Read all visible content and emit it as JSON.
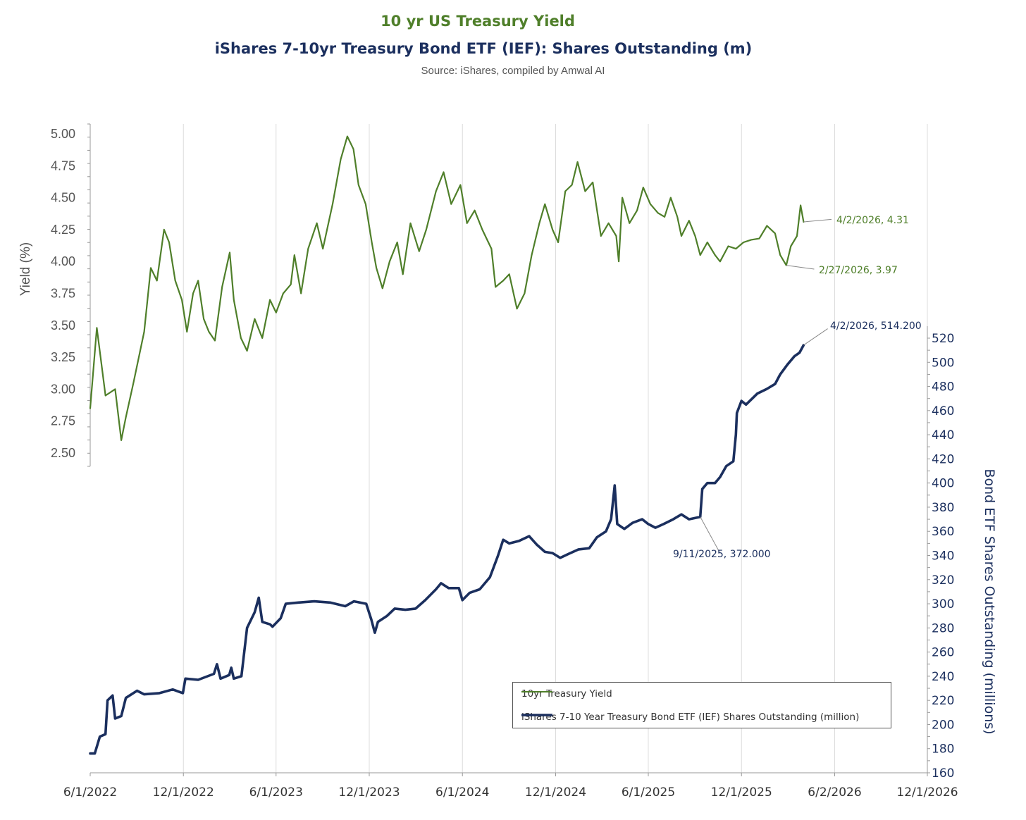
{
  "title": "10 yr US Treasury Yield",
  "subtitle": "iShares 7-10yr Treasury Bond ETF (IEF): Shares Outstanding (m)",
  "source": "Source: iShares, compiled by Amwal AI",
  "colors": {
    "yield": "#4f7f2a",
    "shares": "#1b2f5e",
    "grid": "#dcdcdc",
    "axis": "#999999"
  },
  "legend": {
    "yield": "10yr Treasury Yield",
    "shares": "iShares 7-10 Year Treasury Bond ETF (IEF) Shares Outstanding (million)"
  },
  "chart_data": {
    "type": "line",
    "x_ticks": [
      "6/1/2022",
      "12/1/2022",
      "6/1/2023",
      "12/1/2023",
      "6/1/2024",
      "12/1/2024",
      "6/1/2025",
      "12/1/2025",
      "6/2/2026",
      "12/1/2026"
    ],
    "xlim": [
      "2022-06-01",
      "2026-12-01"
    ],
    "y_left": {
      "label": "Yield (%)",
      "ticks": [
        "2.50",
        "2.75",
        "3.00",
        "3.25",
        "3.50",
        "3.75",
        "4.00",
        "4.25",
        "4.50",
        "4.75",
        "5.00"
      ],
      "range": [
        2.5,
        5.0
      ]
    },
    "y_right": {
      "label": "Bond ETF Shares Outstanding (millions)",
      "ticks": [
        "160",
        "180",
        "200",
        "220",
        "240",
        "260",
        "280",
        "300",
        "320",
        "340",
        "360",
        "380",
        "400",
        "420",
        "440",
        "460",
        "480",
        "500",
        "520"
      ],
      "range": [
        160,
        520
      ]
    },
    "grid": "vertical",
    "legend_position": "bottom-right",
    "series": [
      {
        "name": "10yr Treasury Yield",
        "axis": "left",
        "points": [
          [
            "2022-06-01",
            2.85
          ],
          [
            "2022-06-14",
            3.48
          ],
          [
            "2022-07-01",
            2.95
          ],
          [
            "2022-07-20",
            3.0
          ],
          [
            "2022-08-01",
            2.6
          ],
          [
            "2022-08-10",
            2.78
          ],
          [
            "2022-08-25",
            3.05
          ],
          [
            "2022-09-15",
            3.45
          ],
          [
            "2022-09-28",
            3.95
          ],
          [
            "2022-10-10",
            3.85
          ],
          [
            "2022-10-24",
            4.25
          ],
          [
            "2022-11-03",
            4.15
          ],
          [
            "2022-11-15",
            3.85
          ],
          [
            "2022-11-28",
            3.7
          ],
          [
            "2022-12-08",
            3.45
          ],
          [
            "2022-12-20",
            3.75
          ],
          [
            "2022-12-30",
            3.85
          ],
          [
            "2023-01-10",
            3.55
          ],
          [
            "2023-01-20",
            3.45
          ],
          [
            "2023-02-01",
            3.38
          ],
          [
            "2023-02-15",
            3.8
          ],
          [
            "2023-03-02",
            4.07
          ],
          [
            "2023-03-10",
            3.7
          ],
          [
            "2023-03-24",
            3.4
          ],
          [
            "2023-04-05",
            3.3
          ],
          [
            "2023-04-20",
            3.55
          ],
          [
            "2023-05-05",
            3.4
          ],
          [
            "2023-05-20",
            3.7
          ],
          [
            "2023-06-01",
            3.6
          ],
          [
            "2023-06-15",
            3.75
          ],
          [
            "2023-06-30",
            3.82
          ],
          [
            "2023-07-07",
            4.05
          ],
          [
            "2023-07-20",
            3.75
          ],
          [
            "2023-08-03",
            4.1
          ],
          [
            "2023-08-20",
            4.3
          ],
          [
            "2023-09-01",
            4.1
          ],
          [
            "2023-09-20",
            4.45
          ],
          [
            "2023-10-06",
            4.8
          ],
          [
            "2023-10-19",
            4.98
          ],
          [
            "2023-10-31",
            4.88
          ],
          [
            "2023-11-10",
            4.6
          ],
          [
            "2023-11-24",
            4.45
          ],
          [
            "2023-12-06",
            4.15
          ],
          [
            "2023-12-15",
            3.95
          ],
          [
            "2023-12-27",
            3.79
          ],
          [
            "2024-01-10",
            4.0
          ],
          [
            "2024-01-25",
            4.15
          ],
          [
            "2024-02-05",
            3.9
          ],
          [
            "2024-02-20",
            4.3
          ],
          [
            "2024-03-08",
            4.08
          ],
          [
            "2024-03-22",
            4.25
          ],
          [
            "2024-04-10",
            4.55
          ],
          [
            "2024-04-25",
            4.7
          ],
          [
            "2024-05-10",
            4.45
          ],
          [
            "2024-05-28",
            4.6
          ],
          [
            "2024-06-10",
            4.3
          ],
          [
            "2024-06-25",
            4.4
          ],
          [
            "2024-07-10",
            4.25
          ],
          [
            "2024-07-28",
            4.1
          ],
          [
            "2024-08-05",
            3.8
          ],
          [
            "2024-08-20",
            3.85
          ],
          [
            "2024-09-01",
            3.9
          ],
          [
            "2024-09-16",
            3.63
          ],
          [
            "2024-10-01",
            3.75
          ],
          [
            "2024-10-15",
            4.05
          ],
          [
            "2024-10-30",
            4.3
          ],
          [
            "2024-11-10",
            4.45
          ],
          [
            "2024-11-25",
            4.25
          ],
          [
            "2024-12-06",
            4.15
          ],
          [
            "2024-12-20",
            4.55
          ],
          [
            "2025-01-02",
            4.6
          ],
          [
            "2025-01-13",
            4.78
          ],
          [
            "2025-01-28",
            4.55
          ],
          [
            "2025-02-12",
            4.62
          ],
          [
            "2025-02-28",
            4.2
          ],
          [
            "2025-03-15",
            4.3
          ],
          [
            "2025-03-30",
            4.2
          ],
          [
            "2025-04-04",
            4.0
          ],
          [
            "2025-04-11",
            4.5
          ],
          [
            "2025-04-25",
            4.3
          ],
          [
            "2025-05-10",
            4.4
          ],
          [
            "2025-05-22",
            4.58
          ],
          [
            "2025-06-05",
            4.45
          ],
          [
            "2025-06-20",
            4.38
          ],
          [
            "2025-07-03",
            4.35
          ],
          [
            "2025-07-15",
            4.5
          ],
          [
            "2025-07-28",
            4.35
          ],
          [
            "2025-08-05",
            4.2
          ],
          [
            "2025-08-20",
            4.32
          ],
          [
            "2025-09-01",
            4.2
          ],
          [
            "2025-09-11",
            4.05
          ],
          [
            "2025-09-25",
            4.15
          ],
          [
            "2025-10-10",
            4.05
          ],
          [
            "2025-10-20",
            4.0
          ],
          [
            "2025-11-05",
            4.12
          ],
          [
            "2025-11-20",
            4.1
          ],
          [
            "2025-12-05",
            4.15
          ],
          [
            "2025-12-20",
            4.17
          ],
          [
            "2026-01-05",
            4.18
          ],
          [
            "2026-01-20",
            4.28
          ],
          [
            "2026-02-05",
            4.22
          ],
          [
            "2026-02-15",
            4.05
          ],
          [
            "2026-02-27",
            3.97
          ],
          [
            "2026-03-08",
            4.12
          ],
          [
            "2026-03-20",
            4.2
          ],
          [
            "2026-03-27",
            4.44
          ],
          [
            "2026-04-02",
            4.31
          ]
        ]
      },
      {
        "name": "iShares 7-10 Year Treasury Bond ETF (IEF) Shares Outstanding (million)",
        "axis": "right",
        "points": [
          [
            "2022-06-01",
            176
          ],
          [
            "2022-06-10",
            176
          ],
          [
            "2022-06-20",
            190
          ],
          [
            "2022-07-01",
            192
          ],
          [
            "2022-07-05",
            220
          ],
          [
            "2022-07-15",
            224
          ],
          [
            "2022-07-20",
            205
          ],
          [
            "2022-08-01",
            207
          ],
          [
            "2022-08-10",
            222
          ],
          [
            "2022-09-01",
            228
          ],
          [
            "2022-09-15",
            225
          ],
          [
            "2022-10-15",
            226
          ],
          [
            "2022-11-10",
            229
          ],
          [
            "2022-11-30",
            226
          ],
          [
            "2022-12-05",
            238
          ],
          [
            "2022-12-30",
            237
          ],
          [
            "2023-01-30",
            242
          ],
          [
            "2023-02-05",
            250
          ],
          [
            "2023-02-12",
            238
          ],
          [
            "2023-03-01",
            241
          ],
          [
            "2023-03-05",
            247
          ],
          [
            "2023-03-10",
            238
          ],
          [
            "2023-03-25",
            240
          ],
          [
            "2023-04-05",
            280
          ],
          [
            "2023-04-20",
            293
          ],
          [
            "2023-04-28",
            305
          ],
          [
            "2023-05-05",
            285
          ],
          [
            "2023-05-20",
            283
          ],
          [
            "2023-05-25",
            281
          ],
          [
            "2023-06-10",
            288
          ],
          [
            "2023-06-20",
            300
          ],
          [
            "2023-07-15",
            301
          ],
          [
            "2023-08-15",
            302
          ],
          [
            "2023-09-15",
            301
          ],
          [
            "2023-10-15",
            298
          ],
          [
            "2023-11-01",
            302
          ],
          [
            "2023-11-25",
            300
          ],
          [
            "2023-12-05",
            287
          ],
          [
            "2023-12-12",
            276
          ],
          [
            "2023-12-18",
            285
          ],
          [
            "2024-01-05",
            290
          ],
          [
            "2024-01-20",
            296
          ],
          [
            "2024-02-10",
            295
          ],
          [
            "2024-03-01",
            296
          ],
          [
            "2024-03-20",
            303
          ],
          [
            "2024-04-10",
            312
          ],
          [
            "2024-04-20",
            317
          ],
          [
            "2024-05-05",
            313
          ],
          [
            "2024-05-25",
            313
          ],
          [
            "2024-06-01",
            303
          ],
          [
            "2024-06-15",
            309
          ],
          [
            "2024-07-05",
            312
          ],
          [
            "2024-07-25",
            322
          ],
          [
            "2024-08-10",
            340
          ],
          [
            "2024-08-20",
            353
          ],
          [
            "2024-09-01",
            350
          ],
          [
            "2024-09-20",
            352
          ],
          [
            "2024-10-10",
            356
          ],
          [
            "2024-10-25",
            349
          ],
          [
            "2024-11-10",
            343
          ],
          [
            "2024-11-25",
            342
          ],
          [
            "2024-12-10",
            338
          ],
          [
            "2024-12-25",
            341
          ],
          [
            "2025-01-15",
            345
          ],
          [
            "2025-02-05",
            346
          ],
          [
            "2025-02-20",
            355
          ],
          [
            "2025-03-10",
            360
          ],
          [
            "2025-03-20",
            370
          ],
          [
            "2025-03-27",
            398
          ],
          [
            "2025-04-01",
            366
          ],
          [
            "2025-04-15",
            362
          ],
          [
            "2025-05-01",
            367
          ],
          [
            "2025-05-20",
            370
          ],
          [
            "2025-06-01",
            366
          ],
          [
            "2025-06-15",
            363
          ],
          [
            "2025-07-01",
            366
          ],
          [
            "2025-07-20",
            370
          ],
          [
            "2025-08-05",
            374
          ],
          [
            "2025-08-20",
            370
          ],
          [
            "2025-09-11",
            372
          ],
          [
            "2025-09-15",
            395
          ],
          [
            "2025-09-25",
            400
          ],
          [
            "2025-10-10",
            400
          ],
          [
            "2025-10-20",
            405
          ],
          [
            "2025-11-01",
            414
          ],
          [
            "2025-11-15",
            418
          ],
          [
            "2025-11-20",
            440
          ],
          [
            "2025-11-22",
            458
          ],
          [
            "2025-12-01",
            468
          ],
          [
            "2025-12-10",
            465
          ],
          [
            "2026-01-01",
            474
          ],
          [
            "2026-01-20",
            478
          ],
          [
            "2026-02-05",
            482
          ],
          [
            "2026-02-15",
            490
          ],
          [
            "2026-03-01",
            498
          ],
          [
            "2026-03-15",
            505
          ],
          [
            "2026-03-25",
            508
          ],
          [
            "2026-04-02",
            514.2
          ]
        ]
      }
    ],
    "annotations": [
      {
        "series": 0,
        "point": [
          "2026-04-02",
          4.31
        ],
        "text": "4/2/2026, 4.31"
      },
      {
        "series": 0,
        "point": [
          "2026-02-27",
          3.97
        ],
        "text": "2/27/2026, 3.97"
      },
      {
        "series": 1,
        "point": [
          "2026-04-02",
          514.2
        ],
        "text": "4/2/2026, 514.200"
      },
      {
        "series": 1,
        "point": [
          "2025-09-11",
          372
        ],
        "text": "9/11/2025, 372.000"
      }
    ]
  }
}
